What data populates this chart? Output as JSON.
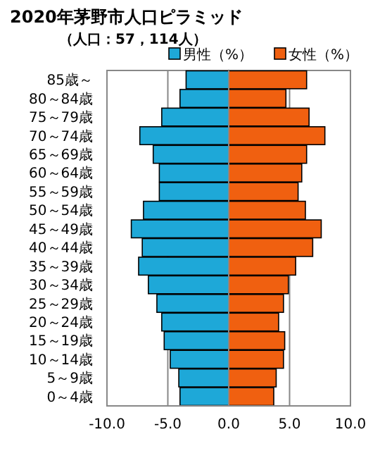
{
  "chart_data": {
    "type": "bar",
    "orientation": "horizontal",
    "stacked": true,
    "title": "2020年茅野市人口ピラミッド",
    "subtitle": "（人口：57，114人）",
    "categories": [
      "85歳～",
      "80～84歳",
      "75～79歳",
      "70～74歳",
      "65～69歳",
      "60～64歳",
      "55～59歳",
      "50～54歳",
      "45～49歳",
      "40～44歳",
      "35～39歳",
      "30～34歳",
      "25～29歳",
      "20～24歳",
      "15～19歳",
      "10～14歳",
      "5～9歳",
      "0～4歳"
    ],
    "series": [
      {
        "name": "男性（%）",
        "color": "#1ea8d8",
        "values": [
          -3.5,
          -4.0,
          -5.5,
          -7.3,
          -6.2,
          -5.7,
          -5.7,
          -7.0,
          -8.0,
          -7.1,
          -7.4,
          -6.6,
          -5.9,
          -5.5,
          -5.3,
          -4.8,
          -4.1,
          -4.0
        ]
      },
      {
        "name": "女性（%）",
        "color": "#f06010",
        "values": [
          6.4,
          4.7,
          6.6,
          7.9,
          6.4,
          6.0,
          5.7,
          6.3,
          7.6,
          6.9,
          5.5,
          4.9,
          4.5,
          4.1,
          4.6,
          4.5,
          3.9,
          3.7
        ]
      }
    ],
    "xlim": [
      -10,
      10
    ],
    "xticks": [
      {
        "value": -10,
        "label": "-10.0"
      },
      {
        "value": -5,
        "label": "-5.0"
      },
      {
        "value": 0,
        "label": "0.0"
      },
      {
        "value": 5,
        "label": "5.0"
      },
      {
        "value": 10,
        "label": "10.0"
      }
    ],
    "grid": "x",
    "legend": "top right"
  }
}
